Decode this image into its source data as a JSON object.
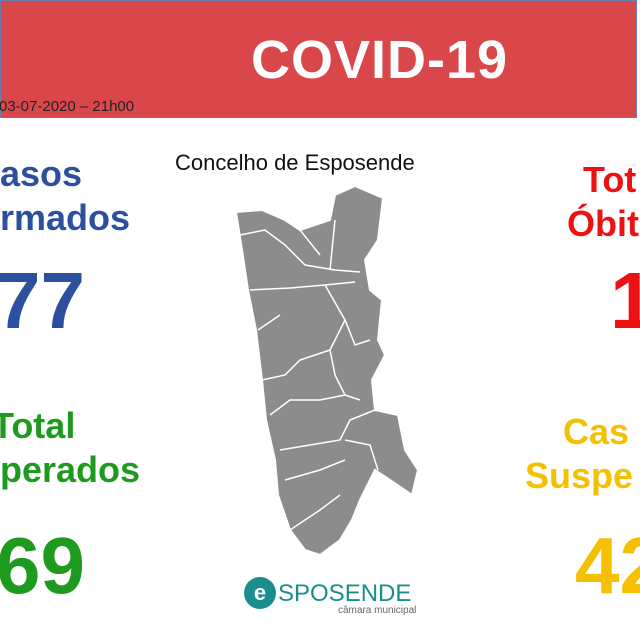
{
  "header": {
    "title": "COVID-19",
    "date": "03-07-2020 – 21h00"
  },
  "map": {
    "title": "Concelho de Esposende"
  },
  "left": [
    {
      "lines": [
        "asos",
        "rmados"
      ],
      "value": "77"
    },
    {
      "lines": [
        "Total",
        "perados"
      ],
      "value": "69"
    }
  ],
  "right": [
    {
      "lines": [
        "Tot",
        "Óbit"
      ],
      "value": "1"
    },
    {
      "lines": [
        "Cas",
        "Suspe"
      ],
      "value": "42"
    }
  ],
  "logo": {
    "name": "SPOSENDE",
    "letter": "e",
    "sub": "câmara municipal"
  }
}
